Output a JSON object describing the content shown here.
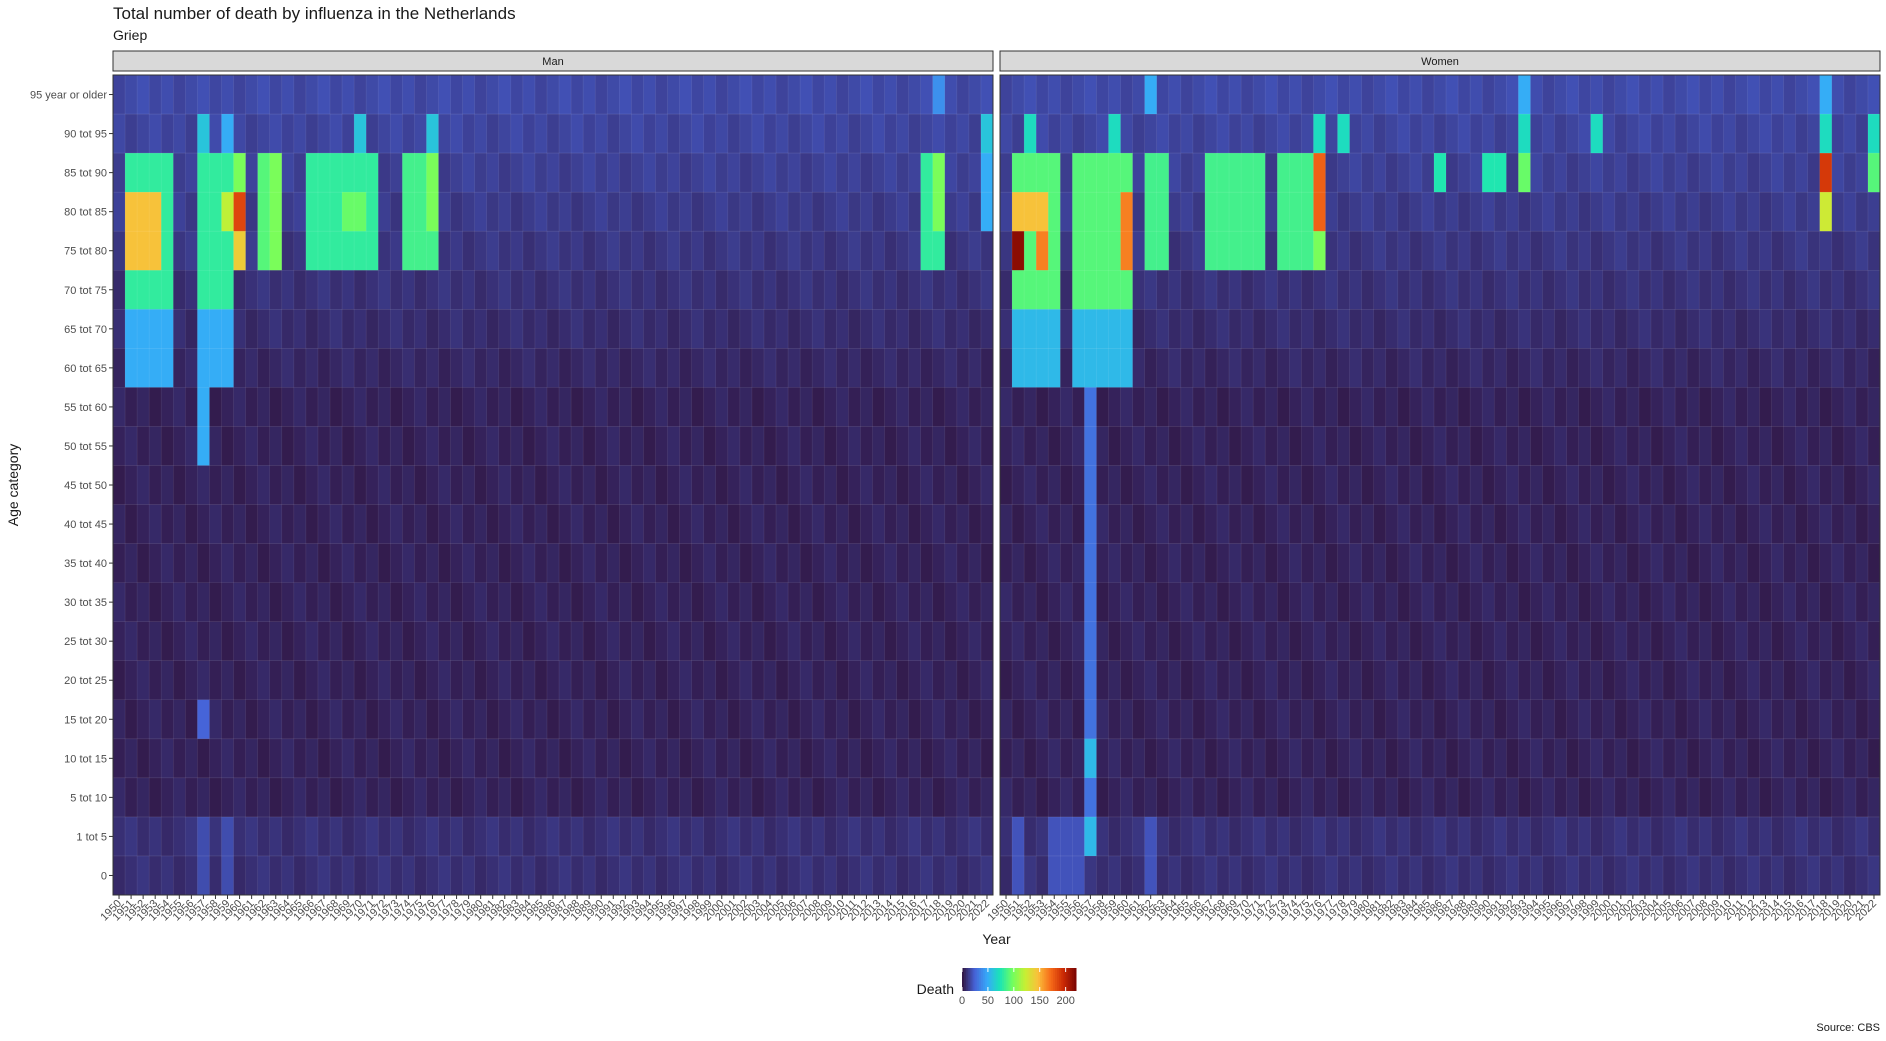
{
  "title": "Total number of death by influenza in the Netherlands",
  "subtitle": "Griep",
  "caption": "Source: CBS",
  "chart_data": {
    "type": "heatmap",
    "title": "Total number of death by influenza in the Netherlands",
    "subtitle": "Griep",
    "xlabel": "Year",
    "ylabel": "Age category",
    "x_start": 1950,
    "x_end": 2022,
    "y_categories": [
      "95 year or older",
      "90 tot 95",
      "85 tot 90",
      "80 tot 85",
      "75 tot 80",
      "70 tot 75",
      "65 tot 70",
      "60 tot 65",
      "55 tot 60",
      "50 tot 55",
      "45 tot 50",
      "40 tot 45",
      "35 tot 40",
      "30 tot 35",
      "25 tot 30",
      "20 tot 25",
      "15 tot 20",
      "10 tot 15",
      "5 tot 10",
      "1 tot 5",
      "0"
    ],
    "facets": [
      {
        "name": "Man",
        "heat": [
          {
            "years": [
              2018
            ],
            "ages": [
              "95 year or older"
            ],
            "value": 40
          },
          {
            "years": [
              1957,
              1970,
              1976,
              2022
            ],
            "ages": [
              "90 tot 95"
            ],
            "value": 60
          },
          {
            "years": [
              1959
            ],
            "ages": [
              "90 tot 95"
            ],
            "value": 50
          },
          {
            "years": [
              1951,
              1952,
              1953,
              1954,
              1957,
              1958,
              1959
            ],
            "ages": [
              "85 tot 90",
              "80 tot 85",
              "75 tot 80",
              "70 tot 75"
            ],
            "value": 80
          },
          {
            "years": [
              1951,
              1952,
              1953
            ],
            "ages": [
              "80 tot 85",
              "75 tot 80"
            ],
            "value": 145
          },
          {
            "years": [
              1959
            ],
            "ages": [
              "80 tot 85"
            ],
            "value": 120
          },
          {
            "years": [
              1960
            ],
            "ages": [
              "80 tot 85"
            ],
            "value": 185
          },
          {
            "years": [
              1960
            ],
            "ages": [
              "75 tot 80"
            ],
            "value": 140
          },
          {
            "years": [
              1960,
              1963
            ],
            "ages": [
              "85 tot 90",
              "80 tot 85",
              "75 tot 80"
            ],
            "value": 100
          },
          {
            "years": [
              1962
            ],
            "ages": [
              "85 tot 90",
              "80 tot 85",
              "75 tot 80"
            ],
            "value": 90
          },
          {
            "years": [
              1966,
              1967,
              1968,
              1969,
              1970,
              1971
            ],
            "ages": [
              "85 tot 90",
              "80 tot 85",
              "75 tot 80"
            ],
            "value": 80
          },
          {
            "years": [
              1969,
              1970
            ],
            "ages": [
              "80 tot 85"
            ],
            "value": 95
          },
          {
            "years": [
              1974,
              1975,
              1976
            ],
            "ages": [
              "85 tot 90",
              "80 tot 85",
              "75 tot 80"
            ],
            "value": 85
          },
          {
            "years": [
              1976
            ],
            "ages": [
              "85 tot 90",
              "80 tot 85"
            ],
            "value": 100
          },
          {
            "years": [
              2017,
              2018
            ],
            "ages": [
              "85 tot 90",
              "80 tot 85",
              "75 tot 80"
            ],
            "value": 80
          },
          {
            "years": [
              2018
            ],
            "ages": [
              "85 tot 90",
              "80 tot 85"
            ],
            "value": 100
          },
          {
            "years": [
              2022
            ],
            "ages": [
              "85 tot 90",
              "80 tot 85"
            ],
            "value": 50
          },
          {
            "years": [
              1951,
              1952,
              1953,
              1954,
              1957,
              1958,
              1959
            ],
            "ages": [
              "65 tot 70",
              "60 tot 65"
            ],
            "value": 50
          },
          {
            "years": [
              1957
            ],
            "ages": [
              "55 tot 60",
              "50 tot 55"
            ],
            "value": 50
          },
          {
            "years": [
              1957
            ],
            "ages": [
              "15 tot 20"
            ],
            "value": 25
          },
          {
            "years": [
              1957,
              1959
            ],
            "ages": [
              "1 tot 5",
              "0"
            ],
            "value": 18
          }
        ]
      },
      {
        "name": "Women",
        "heat": [
          {
            "years": [
              1962,
              1993,
              2018
            ],
            "ages": [
              "95 year or older"
            ],
            "value": 50
          },
          {
            "years": [
              1952,
              1959,
              1976,
              1978,
              1993,
              1999,
              2018,
              2022
            ],
            "ages": [
              "90 tot 95"
            ],
            "value": 70
          },
          {
            "years": [
              1951,
              1952,
              1953,
              1954,
              1956,
              1957,
              1958,
              1959,
              1960
            ],
            "ages": [
              "85 tot 90",
              "80 tot 85",
              "75 tot 80",
              "70 tot 75"
            ],
            "value": 90
          },
          {
            "years": [
              1951,
              1952,
              1953
            ],
            "ages": [
              "80 tot 85"
            ],
            "value": 145
          },
          {
            "years": [
              1951
            ],
            "ages": [
              "75 tot 80"
            ],
            "value": 215
          },
          {
            "years": [
              1953
            ],
            "ages": [
              "75 tot 80"
            ],
            "value": 165
          },
          {
            "years": [
              1960
            ],
            "ages": [
              "80 tot 85",
              "75 tot 80"
            ],
            "value": 165
          },
          {
            "years": [
              1962,
              1963,
              1967,
              1968,
              1969,
              1970,
              1971,
              1973,
              1974,
              1975
            ],
            "ages": [
              "85 tot 90",
              "80 tot 85",
              "75 tot 80"
            ],
            "value": 85
          },
          {
            "years": [
              1976
            ],
            "ages": [
              "85 tot 90",
              "80 tot 85"
            ],
            "value": 175
          },
          {
            "years": [
              1976
            ],
            "ages": [
              "75 tot 80"
            ],
            "value": 100
          },
          {
            "years": [
              1993
            ],
            "ages": [
              "85 tot 90"
            ],
            "value": 95
          },
          {
            "years": [
              1986,
              1990,
              1991
            ],
            "ages": [
              "85 tot 90"
            ],
            "value": 75
          },
          {
            "years": [
              2018
            ],
            "ages": [
              "85 tot 90"
            ],
            "value": 190
          },
          {
            "years": [
              2018
            ],
            "ages": [
              "80 tot 85"
            ],
            "value": 125
          },
          {
            "years": [
              2022
            ],
            "ages": [
              "85 tot 90"
            ],
            "value": 90
          },
          {
            "years": [
              1951,
              1952,
              1953,
              1954,
              1956,
              1957,
              1958,
              1959,
              1960
            ],
            "ages": [
              "65 tot 70",
              "60 tot 65"
            ],
            "value": 55
          },
          {
            "years": [
              1957
            ],
            "ages": [
              "55 tot 60",
              "50 tot 55",
              "45 tot 50",
              "40 tot 45",
              "35 tot 40",
              "30 tot 35",
              "25 tot 30",
              "20 tot 25",
              "15 tot 20",
              "10 tot 15",
              "5 tot 10",
              "1 tot 5"
            ],
            "value": 30
          },
          {
            "years": [
              1957
            ],
            "ages": [
              "10 tot 15",
              "1 tot 5"
            ],
            "value": 55
          },
          {
            "years": [
              1951,
              1954,
              1955,
              1956,
              1962
            ],
            "ages": [
              "1 tot 5",
              "0"
            ],
            "value": 20
          }
        ]
      }
    ],
    "legend": {
      "title": "Death",
      "ticks": [
        0,
        50,
        100,
        150,
        200
      ],
      "range": [
        0,
        220
      ],
      "position": "bottom"
    },
    "colorscale": [
      "#30123b",
      "#4662d7",
      "#36aaf9",
      "#1ae4b6",
      "#72fe5e",
      "#c7ef34",
      "#fabf3a",
      "#f66b19",
      "#cb2a04",
      "#7a0403"
    ]
  }
}
